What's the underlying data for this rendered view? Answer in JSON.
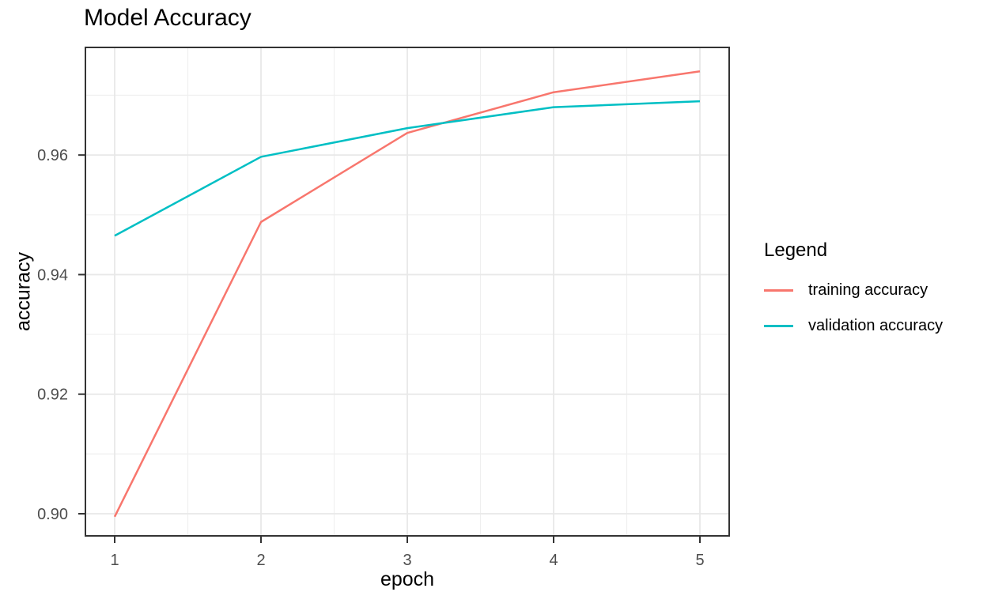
{
  "chart_data": {
    "type": "line",
    "title": "Model Accuracy",
    "xlabel": "epoch",
    "ylabel": "accuracy",
    "legend_title": "Legend",
    "legend_position": "right",
    "x": [
      1,
      2,
      3,
      4,
      5
    ],
    "series": [
      {
        "name": "training accuracy",
        "color": "#F8766D",
        "values": [
          0.8995,
          0.9488,
          0.9637,
          0.9705,
          0.974
        ]
      },
      {
        "name": "validation accuracy",
        "color": "#00BFC4",
        "values": [
          0.9465,
          0.9597,
          0.9645,
          0.968,
          0.969
        ]
      }
    ],
    "xlim": [
      0.8,
      5.2
    ],
    "ylim": [
      0.8963,
      0.978
    ],
    "x_ticks": [
      1,
      2,
      3,
      4,
      5
    ],
    "x_tick_labels": [
      "1",
      "2",
      "3",
      "4",
      "5"
    ],
    "y_ticks": [
      0.9,
      0.92,
      0.94,
      0.96
    ],
    "y_tick_labels": [
      "0.90",
      "0.92",
      "0.94",
      "0.96"
    ],
    "x_minor_ticks": [
      1.5,
      2.5,
      3.5,
      4.5
    ],
    "y_minor_ticks": [
      0.91,
      0.93,
      0.95,
      0.97
    ],
    "grid": "on",
    "panel_border": true,
    "style": {
      "background": "#ffffff",
      "major_grid_color": "#E8E8E8",
      "minor_grid_color": "#EFEFEF",
      "axis_line_color": "#333333",
      "tick_label_color": "#4D4D4D"
    }
  }
}
